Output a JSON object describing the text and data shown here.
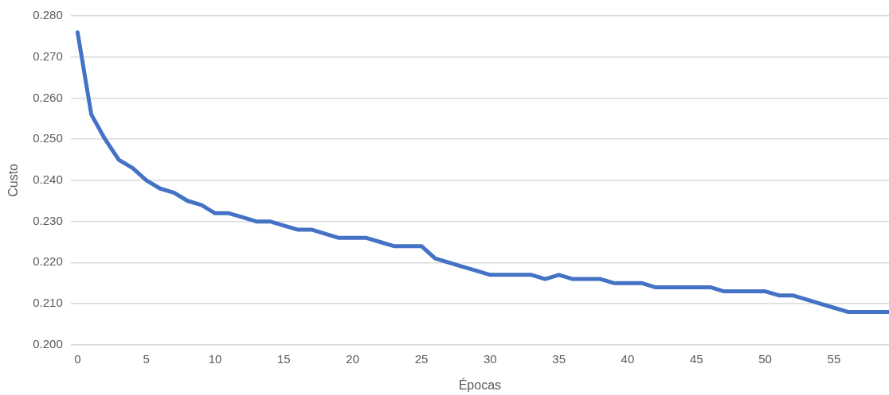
{
  "chart_data": {
    "type": "line",
    "xlabel": "Épocas",
    "ylabel": "Custo",
    "x": [
      0,
      1,
      2,
      3,
      4,
      5,
      6,
      7,
      8,
      9,
      10,
      11,
      12,
      13,
      14,
      15,
      16,
      17,
      18,
      19,
      20,
      21,
      22,
      23,
      24,
      25,
      26,
      27,
      28,
      29,
      30,
      31,
      32,
      33,
      34,
      35,
      36,
      37,
      38,
      39,
      40,
      41,
      42,
      43,
      44,
      45,
      46,
      47,
      48,
      49,
      50,
      51,
      52,
      53,
      54,
      55,
      56,
      57,
      58,
      59
    ],
    "series": [
      {
        "color": "#4472c4",
        "values": [
          0.276,
          0.256,
          0.25,
          0.245,
          0.243,
          0.24,
          0.238,
          0.237,
          0.235,
          0.234,
          0.232,
          0.232,
          0.231,
          0.23,
          0.23,
          0.229,
          0.228,
          0.228,
          0.227,
          0.226,
          0.226,
          0.226,
          0.225,
          0.224,
          0.224,
          0.224,
          0.221,
          0.22,
          0.219,
          0.218,
          0.217,
          0.217,
          0.217,
          0.217,
          0.216,
          0.217,
          0.216,
          0.216,
          0.216,
          0.215,
          0.215,
          0.215,
          0.214,
          0.214,
          0.214,
          0.214,
          0.214,
          0.213,
          0.213,
          0.213,
          0.213,
          0.212,
          0.212,
          0.211,
          0.21,
          0.209,
          0.208,
          0.208,
          0.208,
          0.208
        ]
      }
    ],
    "xlim": [
      -0.5,
      59
    ],
    "xticks": [
      0,
      5,
      10,
      15,
      20,
      25,
      30,
      35,
      40,
      45,
      50,
      55
    ],
    "ylim": [
      0.2,
      0.28
    ],
    "yticks": [
      {
        "value": 0.2,
        "label": "0.200"
      },
      {
        "value": 0.21,
        "label": "0.210"
      },
      {
        "value": 0.22,
        "label": "0.220"
      },
      {
        "value": 0.23,
        "label": "0.230"
      },
      {
        "value": 0.24,
        "label": "0.240"
      },
      {
        "value": 0.25,
        "label": "0.250"
      },
      {
        "value": 0.26,
        "label": "0.260"
      },
      {
        "value": 0.27,
        "label": "0.270"
      },
      {
        "value": 0.28,
        "label": "0.280"
      }
    ],
    "grid": "y",
    "marker": "none",
    "line_style": "solid"
  }
}
